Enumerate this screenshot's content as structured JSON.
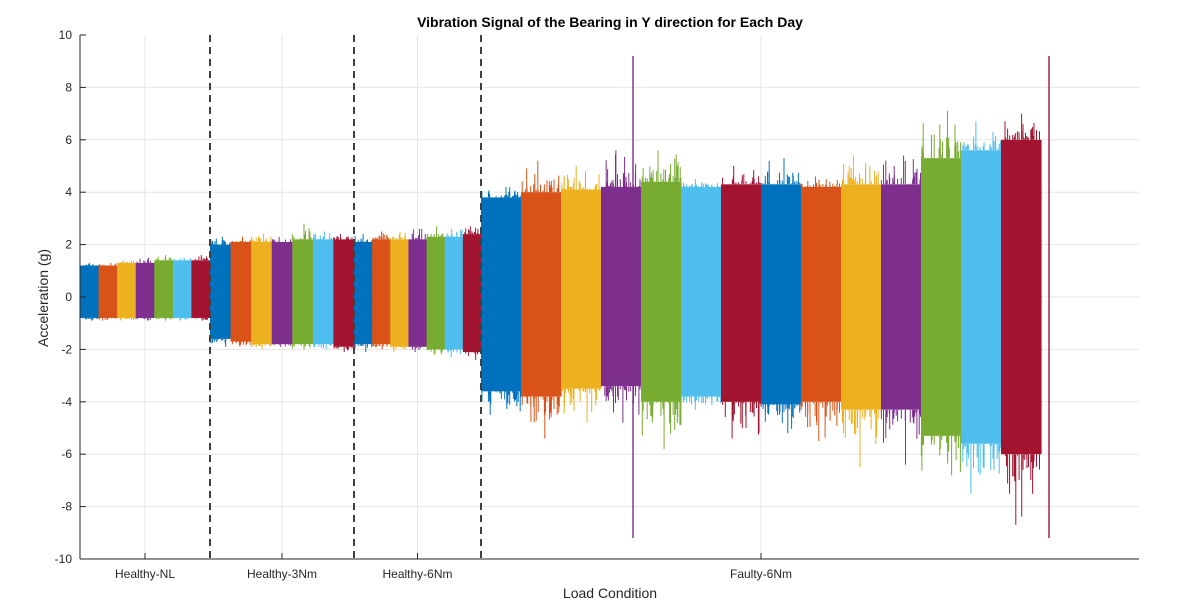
{
  "chart_data": {
    "type": "area",
    "title": "Vibration Signal of the Bearing in Y direction for Each Day",
    "xlabel": "Load Condition",
    "ylabel": "Acceleration (g)",
    "ylim": [
      -10,
      10
    ],
    "yticks": [
      -10,
      -8,
      -6,
      -4,
      -2,
      0,
      2,
      4,
      6,
      8,
      10
    ],
    "grid": true,
    "categories": [
      "Healthy-NL",
      "Healthy-3Nm",
      "Healthy-6Nm",
      "Faulty-6Nm"
    ],
    "palette": [
      "#0072BD",
      "#D95319",
      "#EDB120",
      "#7E2F8E",
      "#77AC30",
      "#4DBEEE",
      "#A2142F"
    ],
    "groups": [
      {
        "name": "Healthy-NL",
        "segments": [
          {
            "upper": 1.2,
            "lower": -0.8,
            "peak_max": 1.3,
            "peak_min": -0.9
          },
          {
            "upper": 1.2,
            "lower": -0.8,
            "peak_max": 1.3,
            "peak_min": -0.9
          },
          {
            "upper": 1.3,
            "lower": -0.8,
            "peak_max": 1.4,
            "peak_min": -0.9
          },
          {
            "upper": 1.3,
            "lower": -0.8,
            "peak_max": 1.5,
            "peak_min": -0.9
          },
          {
            "upper": 1.4,
            "lower": -0.8,
            "peak_max": 1.6,
            "peak_min": -0.9
          },
          {
            "upper": 1.4,
            "lower": -0.8,
            "peak_max": 1.5,
            "peak_min": -0.9
          },
          {
            "upper": 1.4,
            "lower": -0.8,
            "peak_max": 1.6,
            "peak_min": -0.9
          }
        ]
      },
      {
        "name": "Healthy-3Nm",
        "segments": [
          {
            "upper": 2.0,
            "lower": -1.6,
            "peak_max": 2.3,
            "peak_min": -1.9
          },
          {
            "upper": 2.1,
            "lower": -1.7,
            "peak_max": 2.3,
            "peak_min": -1.9
          },
          {
            "upper": 2.1,
            "lower": -1.8,
            "peak_max": 2.4,
            "peak_min": -2.0
          },
          {
            "upper": 2.1,
            "lower": -1.8,
            "peak_max": 2.3,
            "peak_min": -1.9
          },
          {
            "upper": 2.2,
            "lower": -1.8,
            "peak_max": 2.8,
            "peak_min": -2.0
          },
          {
            "upper": 2.2,
            "lower": -1.8,
            "peak_max": 2.5,
            "peak_min": -2.0
          },
          {
            "upper": 2.2,
            "lower": -1.9,
            "peak_max": 2.4,
            "peak_min": -2.1
          }
        ]
      },
      {
        "name": "Healthy-6Nm",
        "segments": [
          {
            "upper": 2.1,
            "lower": -1.8,
            "peak_max": 2.4,
            "peak_min": -2.1
          },
          {
            "upper": 2.2,
            "lower": -1.8,
            "peak_max": 2.5,
            "peak_min": -2.0
          },
          {
            "upper": 2.2,
            "lower": -1.9,
            "peak_max": 2.5,
            "peak_min": -2.1
          },
          {
            "upper": 2.2,
            "lower": -1.9,
            "peak_max": 2.6,
            "peak_min": -2.1
          },
          {
            "upper": 2.3,
            "lower": -2.0,
            "peak_max": 2.7,
            "peak_min": -2.2
          },
          {
            "upper": 2.3,
            "lower": -2.0,
            "peak_max": 2.6,
            "peak_min": -2.3
          },
          {
            "upper": 2.4,
            "lower": -2.1,
            "peak_max": 2.7,
            "peak_min": -2.4
          }
        ]
      },
      {
        "name": "Faulty-6Nm",
        "segments": [
          {
            "upper": 3.8,
            "lower": -3.6,
            "peak_max": 4.2,
            "peak_min": -4.5
          },
          {
            "upper": 4.0,
            "lower": -3.8,
            "peak_max": 5.2,
            "peak_min": -5.4
          },
          {
            "upper": 4.1,
            "lower": -3.5,
            "peak_max": 5.0,
            "peak_min": -4.8
          },
          {
            "upper": 4.2,
            "lower": -3.4,
            "peak_max": 5.6,
            "peak_min": -4.8
          },
          {
            "upper": 4.4,
            "lower": -4.0,
            "peak_max": 5.6,
            "peak_min": -5.8
          },
          {
            "upper": 4.2,
            "lower": -3.8,
            "peak_max": 4.5,
            "peak_min": -4.3
          },
          {
            "upper": 4.3,
            "lower": -4.0,
            "peak_max": 5.0,
            "peak_min": -5.4
          },
          {
            "upper": 4.3,
            "lower": -4.1,
            "peak_max": 5.3,
            "peak_min": -5.2
          },
          {
            "upper": 4.2,
            "lower": -4.0,
            "peak_max": 4.6,
            "peak_min": -5.5
          },
          {
            "upper": 4.3,
            "lower": -4.3,
            "peak_max": 5.4,
            "peak_min": -6.5
          },
          {
            "upper": 4.3,
            "lower": -4.3,
            "peak_max": 5.4,
            "peak_min": -6.4
          },
          {
            "upper": 5.3,
            "lower": -5.3,
            "peak_max": 7.1,
            "peak_min": -6.8
          },
          {
            "upper": 5.6,
            "lower": -5.6,
            "peak_max": 6.7,
            "peak_min": -7.5
          },
          {
            "upper": 6.0,
            "lower": -6.0,
            "peak_max": 7.0,
            "peak_min": -8.7
          }
        ],
        "spikes": [
          {
            "segment": 3,
            "position": 0.8,
            "max": 9.2,
            "min": -9.2
          },
          {
            "segment": 13,
            "position": 1.2,
            "max": 9.2,
            "min": -9.2
          }
        ]
      }
    ]
  }
}
